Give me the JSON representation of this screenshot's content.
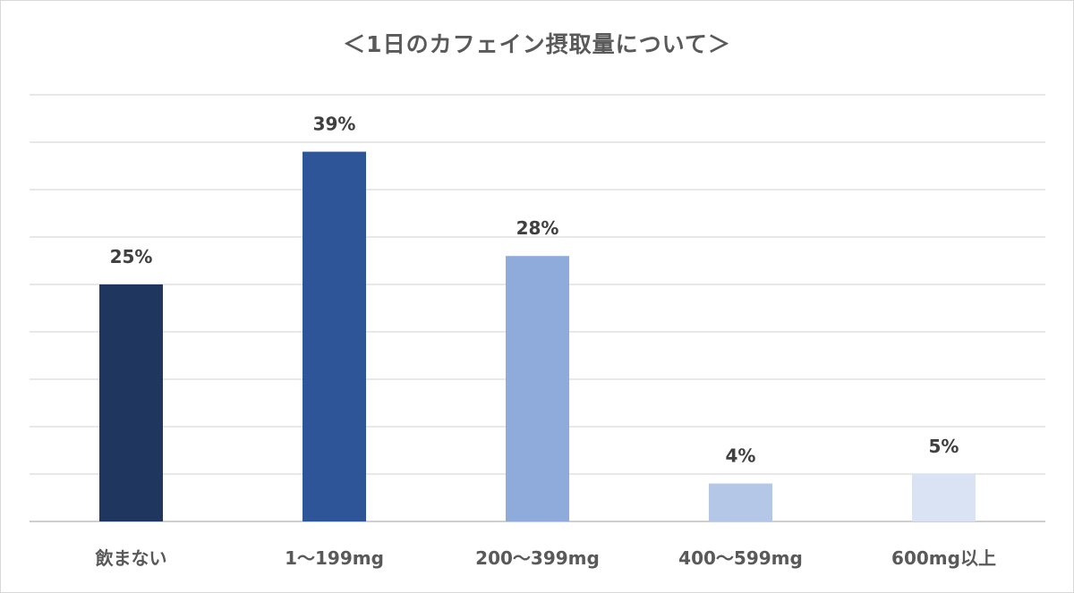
{
  "chart_data": {
    "type": "bar",
    "title": "＜1日のカフェイン摂取量について＞",
    "xlabel": "",
    "ylabel": "",
    "categories": [
      "飲まない",
      "1～199mg",
      "200～399mg",
      "400～599mg",
      "600mg以上"
    ],
    "values": [
      25,
      39,
      28,
      4,
      5
    ],
    "data_labels": [
      "25%",
      "39%",
      "28%",
      "4%",
      "5%"
    ],
    "unit": "%",
    "ylim": [
      0,
      45
    ],
    "ytick_step": 5,
    "grid": true,
    "legend": "none",
    "bar_colors": [
      "#1f365f",
      "#2e5597",
      "#8fabdc",
      "#b4c7e7",
      "#dae3f3"
    ]
  }
}
